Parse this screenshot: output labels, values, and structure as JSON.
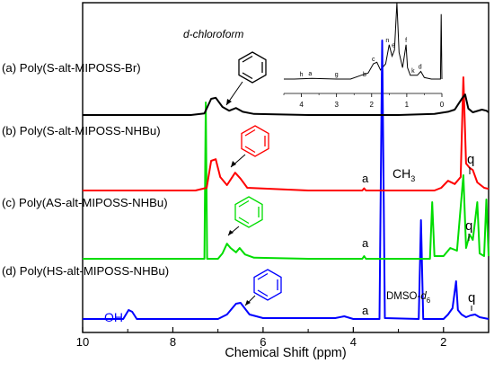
{
  "chart_data": {
    "type": "line",
    "xlabel": "Chemical Shift (ppm)",
    "xlim": [
      10,
      1
    ],
    "xreversed": true,
    "xticks": [
      10,
      8,
      6,
      4,
      2
    ],
    "series": [
      {
        "name": "(a) Poly(S-alt-MIPOSS-Br)",
        "color": "#000000",
        "points": [
          [
            10,
            0
          ],
          [
            7.6,
            0
          ],
          [
            7.3,
            0.03
          ],
          [
            7.15,
            0.3
          ],
          [
            7.05,
            0.32
          ],
          [
            6.9,
            0.15
          ],
          [
            6.75,
            0.08
          ],
          [
            6.6,
            0.13
          ],
          [
            6.45,
            0.06
          ],
          [
            6.2,
            0.02
          ],
          [
            5,
            0
          ],
          [
            3,
            0
          ],
          [
            2.2,
            0.02
          ],
          [
            1.9,
            0.06
          ],
          [
            1.75,
            0.1
          ],
          [
            1.58,
            0.32
          ],
          [
            1.52,
            0.38
          ],
          [
            1.45,
            0.12
          ],
          [
            1.35,
            0.05
          ],
          [
            1.15,
            0.1
          ],
          [
            1.05,
            0.08
          ],
          [
            1,
            0.05
          ]
        ]
      },
      {
        "name": "(b) Poly(S-alt-MIPOSS-NHBu)",
        "color": "#ff0000",
        "points": [
          [
            10,
            0
          ],
          [
            7.5,
            0
          ],
          [
            7.25,
            0.05
          ],
          [
            7.15,
            0.55
          ],
          [
            7.05,
            0.58
          ],
          [
            6.95,
            0.25
          ],
          [
            6.8,
            0.1
          ],
          [
            6.62,
            0.33
          ],
          [
            6.5,
            0.22
          ],
          [
            6.35,
            0.05
          ],
          [
            5,
            0
          ],
          [
            3.8,
            0
          ],
          [
            3.76,
            0.04
          ],
          [
            3.72,
            0
          ],
          [
            2.2,
            0
          ],
          [
            2.05,
            0.05
          ],
          [
            1.9,
            0.18
          ],
          [
            1.75,
            0.12
          ],
          [
            1.62,
            0.25
          ],
          [
            1.56,
            2.1
          ],
          [
            1.5,
            0.5
          ],
          [
            1.42,
            0.42
          ],
          [
            1.35,
            0.38
          ],
          [
            1.25,
            0.15
          ],
          [
            1.1,
            0.05
          ],
          [
            1,
            0.03
          ]
        ]
      },
      {
        "name": "(c) Poly(AS-alt-MIPOSS-NHBu)",
        "color": "#00dd00",
        "points": [
          [
            10,
            0
          ],
          [
            7.3,
            0
          ],
          [
            7.27,
            2.9
          ],
          [
            7.24,
            0
          ],
          [
            7,
            0
          ],
          [
            6.9,
            0.1
          ],
          [
            6.8,
            0.28
          ],
          [
            6.72,
            0.2
          ],
          [
            6.6,
            0.12
          ],
          [
            6.52,
            0.2
          ],
          [
            6.4,
            0.08
          ],
          [
            6.2,
            0.02
          ],
          [
            5,
            0
          ],
          [
            3.8,
            0
          ],
          [
            3.76,
            0.05
          ],
          [
            3.72,
            0
          ],
          [
            2.3,
            0
          ],
          [
            2.25,
            1.05
          ],
          [
            2.2,
            0.05
          ],
          [
            2,
            0.05
          ],
          [
            1.85,
            0.2
          ],
          [
            1.7,
            0.15
          ],
          [
            1.56,
            1.55
          ],
          [
            1.5,
            0.2
          ],
          [
            1.42,
            0.45
          ],
          [
            1.35,
            0.35
          ],
          [
            1.25,
            1.05
          ],
          [
            1.2,
            0.1
          ],
          [
            1.1,
            0.05
          ],
          [
            1.05,
            1.1
          ],
          [
            1,
            0.05
          ]
        ]
      },
      {
        "name": "(d) Poly(HS-alt-MIPOSS-NHBu)",
        "color": "#0000ff",
        "points": [
          [
            10,
            0
          ],
          [
            9.1,
            0
          ],
          [
            8.98,
            0.1
          ],
          [
            8.9,
            0.08
          ],
          [
            8.8,
            0
          ],
          [
            7,
            0
          ],
          [
            6.8,
            0.05
          ],
          [
            6.6,
            0.17
          ],
          [
            6.5,
            0.18
          ],
          [
            6.3,
            0.05
          ],
          [
            6,
            0.01
          ],
          [
            4.4,
            0.01
          ],
          [
            4.2,
            0.03
          ],
          [
            4,
            0
          ],
          [
            3.42,
            0
          ],
          [
            3.36,
            3.1
          ],
          [
            3.3,
            0.01
          ],
          [
            2.55,
            0
          ],
          [
            2.5,
            1.1
          ],
          [
            2.45,
            0
          ],
          [
            2,
            0
          ],
          [
            1.9,
            0.05
          ],
          [
            1.8,
            0.12
          ],
          [
            1.72,
            0.42
          ],
          [
            1.68,
            0.1
          ],
          [
            1.6,
            0.05
          ],
          [
            1.5,
            0.02
          ],
          [
            1.4,
            0.04
          ],
          [
            1.3,
            0.05
          ],
          [
            1.2,
            0.02
          ],
          [
            1,
            0
          ]
        ]
      }
    ],
    "inset": {
      "xlim": [
        4.5,
        0
      ],
      "xticks": [
        4,
        3,
        2,
        1,
        0
      ],
      "points": [
        [
          4.5,
          0
        ],
        [
          4.2,
          0
        ],
        [
          3.7,
          0.01
        ],
        [
          3,
          0
        ],
        [
          2.6,
          0
        ],
        [
          2.3,
          0.05
        ],
        [
          2.1,
          0.08
        ],
        [
          1.95,
          0.2
        ],
        [
          1.85,
          0.22
        ],
        [
          1.75,
          0.12
        ],
        [
          1.6,
          0.2
        ],
        [
          1.5,
          0.45
        ],
        [
          1.42,
          0.3
        ],
        [
          1.35,
          0.38
        ],
        [
          1.28,
          1.0
        ],
        [
          1.22,
          0.35
        ],
        [
          1.12,
          0.15
        ],
        [
          1.02,
          0.45
        ],
        [
          0.98,
          0.15
        ],
        [
          0.9,
          0.05
        ],
        [
          0.7,
          0.05
        ],
        [
          0.6,
          0.1
        ],
        [
          0.5,
          0.02
        ],
        [
          0.3,
          0
        ],
        [
          0.04,
          0
        ],
        [
          0.02,
          0.85
        ],
        [
          0,
          0
        ]
      ],
      "peak_labels": [
        {
          "ppm": 4.0,
          "text": "h"
        },
        {
          "ppm": 3.75,
          "text": "a"
        },
        {
          "ppm": 3.0,
          "text": "g"
        },
        {
          "ppm": 2.2,
          "text": "b"
        },
        {
          "ppm": 1.95,
          "text": "c"
        },
        {
          "ppm": 1.55,
          "text": "n"
        },
        {
          "ppm": 1.38,
          "text": "e"
        },
        {
          "ppm": 1.02,
          "text": "f"
        },
        {
          "ppm": 0.82,
          "text": "k"
        },
        {
          "ppm": 0.62,
          "text": "d"
        }
      ]
    }
  },
  "labels": {
    "solvent_top": "d-chloroform",
    "series_a": "(a) Poly(S-alt-MIPOSS-Br)",
    "series_b": "(b) Poly(S-alt-MIPOSS-NHBu)",
    "series_c": "(c) Poly(AS-alt-MIPOSS-NHBu)",
    "series_d": "(d) Poly(HS-alt-MIPOSS-NHBu)",
    "b_a": "a",
    "b_ch3": "CH",
    "b_ch3_sub": "3",
    "b_q": "q",
    "c_a": "a",
    "c_q": "q",
    "d_oh": "OH",
    "d_a": "a",
    "d_dmso": "DMSO-",
    "d_dmso_d": "d",
    "d_dmso_sub": "6",
    "d_q": "q"
  },
  "colors": {
    "a": "#000000",
    "b": "#ff0000",
    "c": "#00dd00",
    "d": "#0000ff",
    "oh_label": "#0000ff"
  }
}
